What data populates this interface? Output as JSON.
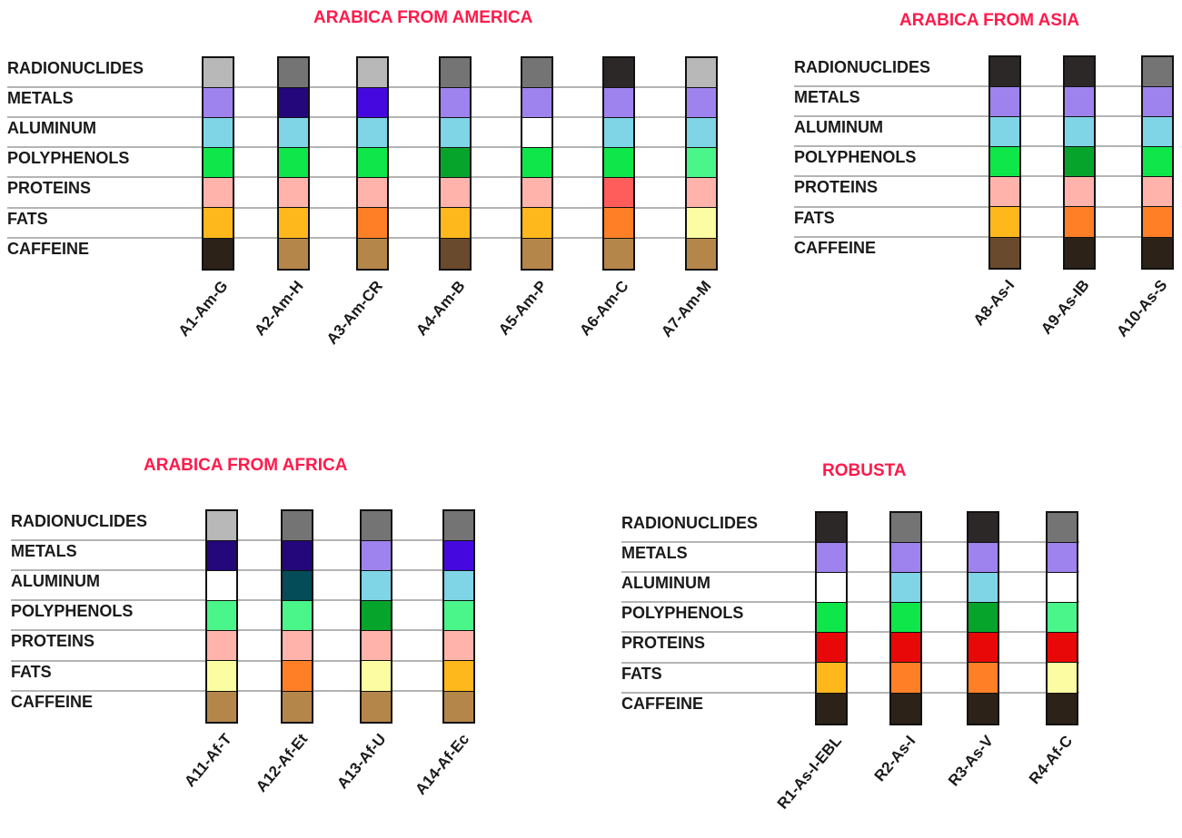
{
  "row_labels": [
    "RADIONUCLIDES",
    "METALS",
    "ALUMINUM",
    "POLYPHENOLS",
    "PROTEINS",
    "FATS",
    "CAFFEINE"
  ],
  "panels": [
    {
      "title": "ARABICA FROM AMERICA",
      "columns": [
        {
          "label": "A1-Am-G",
          "colors": [
            "#b8b8b8",
            "#9e82ee",
            "#7fd4e6",
            "#0ee64a",
            "#ffb3aa",
            "#ffb81c",
            "#2c2218"
          ]
        },
        {
          "label": "A2-Am-H",
          "colors": [
            "#747474",
            "#24077a",
            "#7fd4e6",
            "#0ee64a",
            "#ffb3aa",
            "#ffb81c",
            "#b5864a"
          ]
        },
        {
          "label": "A3-Am-CR",
          "colors": [
            "#b8b8b8",
            "#4508de",
            "#7fd4e6",
            "#0ee64a",
            "#ffb3aa",
            "#ff7f26",
            "#b5864a"
          ]
        },
        {
          "label": "A4-Am-B",
          "colors": [
            "#747474",
            "#9e82ee",
            "#7fd4e6",
            "#07a42c",
            "#ffb3aa",
            "#ffb81c",
            "#694a2c"
          ]
        },
        {
          "label": "A5-Am-P",
          "colors": [
            "#747474",
            "#9e82ee",
            "#ffffff",
            "#0ee64a",
            "#ffb3aa",
            "#ffb81c",
            "#b5864a"
          ]
        },
        {
          "label": "A6-Am-C",
          "colors": [
            "#2c2828",
            "#9e82ee",
            "#7fd4e6",
            "#0ee64a",
            "#ff5c5c",
            "#ff7f26",
            "#b5864a"
          ]
        },
        {
          "label": "A7-Am-M",
          "colors": [
            "#b8b8b8",
            "#9e82ee",
            "#7fd4e6",
            "#4af58a",
            "#ffb3aa",
            "#fcfca2",
            "#b5864a"
          ]
        }
      ]
    },
    {
      "title": "ARABICA FROM ASIA",
      "columns": [
        {
          "label": "A8-As-I",
          "colors": [
            "#2c2828",
            "#9e82ee",
            "#7fd4e6",
            "#0ee64a",
            "#ffb3aa",
            "#ffb81c",
            "#694a2c"
          ]
        },
        {
          "label": "A9-As-IB",
          "colors": [
            "#2c2828",
            "#9e82ee",
            "#7fd4e6",
            "#07a42c",
            "#ffb3aa",
            "#ff7f26",
            "#2c2218"
          ]
        },
        {
          "label": "A10-As-S",
          "colors": [
            "#747474",
            "#9e82ee",
            "#7fd4e6",
            "#0ee64a",
            "#ffb3aa",
            "#ff7f26",
            "#2c2218"
          ]
        }
      ]
    },
    {
      "title": "ARABICA FROM AFRICA",
      "columns": [
        {
          "label": "A11-Af-T",
          "colors": [
            "#b8b8b8",
            "#24077a",
            "#ffffff",
            "#4af58a",
            "#ffb3aa",
            "#fcfca2",
            "#b5864a"
          ]
        },
        {
          "label": "A12-Af-Et",
          "colors": [
            "#747474",
            "#24077a",
            "#034c58",
            "#4af58a",
            "#ffb3aa",
            "#ff7f26",
            "#b5864a"
          ]
        },
        {
          "label": "A13-Af-U",
          "colors": [
            "#747474",
            "#9e82ee",
            "#7fd4e6",
            "#07a42c",
            "#ffb3aa",
            "#fcfca2",
            "#b5864a"
          ]
        },
        {
          "label": "A14-Af-Ec",
          "colors": [
            "#747474",
            "#4508de",
            "#7fd4e6",
            "#4af58a",
            "#ffb3aa",
            "#ffb81c",
            "#b5864a"
          ]
        }
      ]
    },
    {
      "title": "ROBUSTA",
      "columns": [
        {
          "label": "R1-As-I-EBL",
          "colors": [
            "#2c2828",
            "#9e82ee",
            "#ffffff",
            "#0ee64a",
            "#e80808",
            "#ffb81c",
            "#2c2218"
          ]
        },
        {
          "label": "R2-As-I",
          "colors": [
            "#747474",
            "#9e82ee",
            "#7fd4e6",
            "#0ee64a",
            "#e80808",
            "#ff7f26",
            "#2c2218"
          ]
        },
        {
          "label": "R3-As-V",
          "colors": [
            "#2c2828",
            "#9e82ee",
            "#7fd4e6",
            "#07a42c",
            "#e80808",
            "#ff7f26",
            "#2c2218"
          ]
        },
        {
          "label": "R4-Af-C",
          "colors": [
            "#747474",
            "#9e82ee",
            "#ffffff",
            "#4af58a",
            "#e80808",
            "#fcfca2",
            "#2c2218"
          ]
        }
      ]
    }
  ]
}
